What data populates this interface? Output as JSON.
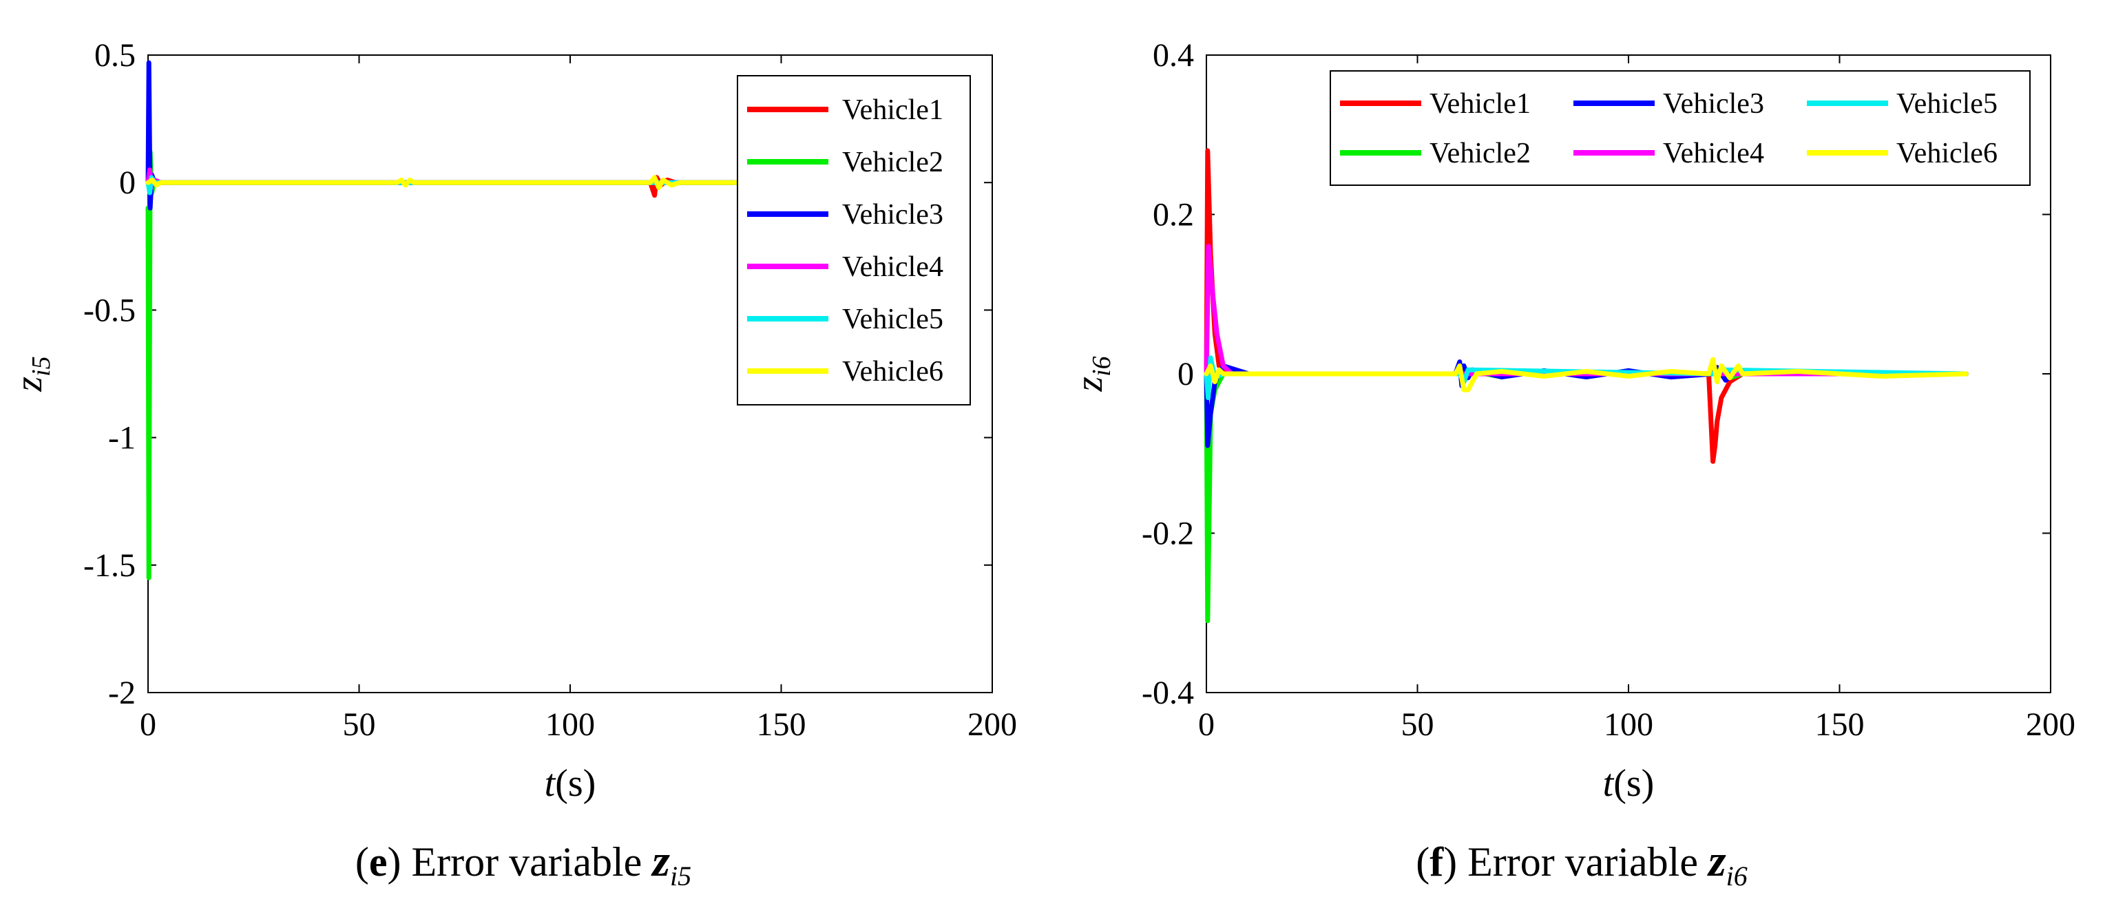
{
  "chart_data": [
    {
      "panel": "e",
      "type": "line",
      "caption": {
        "letter": "e",
        "text": "Error variable",
        "symbol": "z",
        "subscript": "i5"
      },
      "xlabel": {
        "var": "t",
        "unit": "(s)"
      },
      "ylabel": {
        "var": "z",
        "subscript": "i5"
      },
      "xlim": [
        0,
        200
      ],
      "ylim": [
        -2,
        0.5
      ],
      "xticks": [
        0,
        50,
        100,
        150,
        200
      ],
      "xtick_labels": [
        "0",
        "50",
        "100",
        "150",
        "200"
      ],
      "yticks": [
        -2,
        -1.5,
        -1,
        -0.5,
        0,
        0.5
      ],
      "ytick_labels": [
        "-2",
        "-1.5",
        "-1",
        "-0.5",
        "0",
        "0.5"
      ],
      "grid": false,
      "legend": {
        "placement": "top-right",
        "columns": 1
      },
      "series": [
        {
          "name": "Vehicle1",
          "color": "#ff0000",
          "x": [
            0,
            0.3,
            0.6,
            1,
            2,
            4,
            10,
            60,
            119,
            120,
            120.5,
            121.5,
            123,
            125,
            140
          ],
          "y": [
            0,
            0.03,
            -0.02,
            0.01,
            0,
            0,
            0,
            0,
            0,
            -0.05,
            0.02,
            -0.01,
            0.01,
            0,
            0
          ]
        },
        {
          "name": "Vehicle2",
          "color": "#00ee00",
          "x": [
            0,
            0.2,
            0.5,
            0.9,
            1.5,
            3,
            10,
            60,
            120,
            140
          ],
          "y": [
            -0.1,
            -1.55,
            0.12,
            -0.04,
            0.01,
            0,
            0,
            0,
            0,
            0
          ]
        },
        {
          "name": "Vehicle3",
          "color": "#0000ff",
          "x": [
            0,
            0.2,
            0.5,
            0.9,
            1.5,
            3,
            10,
            60,
            120,
            140
          ],
          "y": [
            0,
            0.47,
            -0.1,
            0.03,
            0,
            0,
            0,
            0,
            0,
            0
          ]
        },
        {
          "name": "Vehicle4",
          "color": "#ff00ff",
          "x": [
            0,
            0.4,
            0.8,
            1.5,
            3,
            10,
            60,
            120,
            140
          ],
          "y": [
            0,
            0.05,
            -0.02,
            0.01,
            0,
            0,
            0,
            0,
            0
          ]
        },
        {
          "name": "Vehicle5",
          "color": "#00eeee",
          "x": [
            0,
            0.4,
            0.8,
            1.5,
            3,
            10,
            60,
            120,
            140
          ],
          "y": [
            0,
            -0.04,
            0.02,
            0,
            0,
            0,
            0,
            0,
            0
          ]
        },
        {
          "name": "Vehicle6",
          "color": "#ffff00",
          "x": [
            0,
            1,
            2,
            3,
            10,
            30,
            59,
            60,
            61,
            62,
            63,
            80,
            119,
            120,
            121,
            122,
            124,
            126,
            140
          ],
          "y": [
            0,
            0.01,
            -0.01,
            0,
            0,
            0,
            0,
            0.01,
            -0.01,
            0.01,
            0,
            0,
            0,
            0.02,
            -0.02,
            0.01,
            -0.01,
            0,
            0
          ]
        }
      ]
    },
    {
      "panel": "f",
      "type": "line",
      "caption": {
        "letter": "f",
        "text": "Error variable",
        "symbol": "z",
        "subscript": "i6"
      },
      "xlabel": {
        "var": "t",
        "unit": "(s)"
      },
      "ylabel": {
        "var": "z",
        "subscript": "i6"
      },
      "xlim": [
        0,
        200
      ],
      "ylim": [
        -0.4,
        0.4
      ],
      "xticks": [
        0,
        50,
        100,
        150,
        200
      ],
      "xtick_labels": [
        "0",
        "50",
        "100",
        "150",
        "200"
      ],
      "yticks": [
        -0.4,
        -0.2,
        0,
        0.2,
        0.4
      ],
      "ytick_labels": [
        "-0.4",
        "-0.2",
        "0",
        "0.2",
        "0.4"
      ],
      "grid": false,
      "legend": {
        "placement": "top-right",
        "columns": 3
      },
      "series": [
        {
          "name": "Vehicle1",
          "color": "#ff0000",
          "x": [
            0,
            0.3,
            1,
            2,
            3,
            5,
            10,
            60,
            119,
            120,
            120.5,
            121,
            122,
            124,
            127,
            180
          ],
          "y": [
            0,
            0.28,
            0.15,
            0.05,
            0.01,
            0,
            0,
            0,
            0,
            -0.11,
            -0.09,
            -0.06,
            -0.03,
            -0.01,
            0,
            0
          ]
        },
        {
          "name": "Vehicle2",
          "color": "#00ee00",
          "x": [
            0,
            0.3,
            1,
            2,
            4,
            10,
            59,
            60,
            61,
            62,
            63,
            70,
            80,
            90,
            100,
            110,
            120,
            121,
            124,
            127,
            180
          ],
          "y": [
            0,
            -0.31,
            -0.05,
            -0.02,
            0,
            0,
            0,
            0.01,
            -0.01,
            0,
            0.003,
            -0.004,
            0.004,
            -0.004,
            0.004,
            -0.004,
            0,
            0.005,
            -0.005,
            0,
            0
          ]
        },
        {
          "name": "Vehicle3",
          "color": "#0000ff",
          "x": [
            0,
            0.3,
            1,
            2,
            4,
            10,
            59,
            60,
            60.5,
            61,
            62,
            63,
            70,
            80,
            90,
            100,
            110,
            120,
            121,
            123,
            126,
            127,
            180
          ],
          "y": [
            0,
            -0.09,
            -0.05,
            -0.01,
            0.01,
            0,
            0,
            0.015,
            -0.015,
            0.01,
            -0.005,
            0.005,
            -0.004,
            0.004,
            -0.004,
            0.004,
            -0.004,
            0,
            0.008,
            -0.008,
            0.005,
            0,
            0
          ]
        },
        {
          "name": "Vehicle4",
          "color": "#ff00ff",
          "x": [
            0,
            0.5,
            1.5,
            2.5,
            4,
            6,
            10,
            60,
            120,
            180
          ],
          "y": [
            0,
            0.16,
            0.1,
            0.05,
            0.01,
            0,
            0,
            0,
            0,
            0
          ]
        },
        {
          "name": "Vehicle5",
          "color": "#00eeee",
          "x": [
            0,
            0.4,
            1,
            2,
            4,
            10,
            60,
            61,
            62,
            120,
            122,
            180
          ],
          "y": [
            0,
            -0.03,
            0.02,
            -0.005,
            0,
            0,
            0,
            -0.01,
            0.005,
            0,
            0.005,
            0
          ]
        },
        {
          "name": "Vehicle6",
          "color": "#ffff00",
          "x": [
            0,
            1,
            2,
            3,
            4,
            10,
            30,
            59,
            60,
            61,
            62,
            63,
            64,
            70,
            80,
            90,
            100,
            110,
            119,
            120,
            121,
            122,
            124,
            126,
            127,
            140,
            160,
            180
          ],
          "y": [
            0,
            0.01,
            -0.01,
            0.005,
            0,
            0,
            0,
            0,
            0.01,
            -0.02,
            -0.02,
            -0.01,
            0,
            0.003,
            -0.003,
            0.003,
            -0.003,
            0.003,
            0,
            0.018,
            -0.01,
            0.01,
            -0.005,
            0.01,
            0,
            0.003,
            -0.003,
            0
          ]
        }
      ]
    }
  ]
}
